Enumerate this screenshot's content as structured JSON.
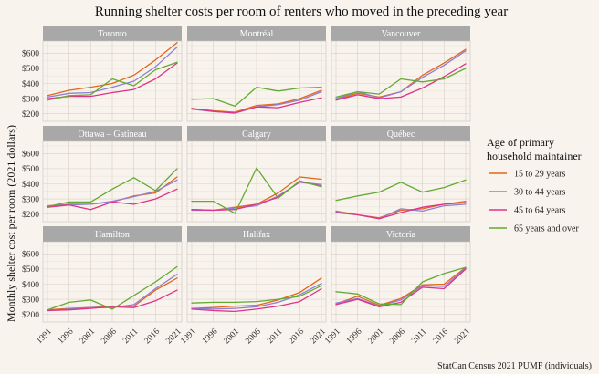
{
  "chart_data": {
    "type": "line",
    "title": "Running shelter costs per room of renters who moved in the preceding year",
    "ylabel": "Monthly shelter cost per room (2021 dollars)",
    "xlabel": "",
    "caption": "StatCan Census 2021 PUMF (individuals)",
    "legend": {
      "title_lines": [
        "Age of primary",
        "household maintainer"
      ],
      "position": "right"
    },
    "x": [
      1991,
      1996,
      2001,
      2006,
      2011,
      2016,
      2021
    ],
    "x_ticks": [
      "1991",
      "1996",
      "2001",
      "2006",
      "2011",
      "2016",
      "2021"
    ],
    "ylim": [
      150,
      680
    ],
    "y_ticks": [
      200,
      300,
      400,
      500,
      600
    ],
    "y_tick_labels": [
      "$200",
      "$300",
      "$400",
      "$500",
      "$600"
    ],
    "grid": true,
    "series_defs": [
      {
        "name": "15 to 29 years",
        "color": "#e4661a"
      },
      {
        "name": "30 to 44 years",
        "color": "#8e7fd4"
      },
      {
        "name": "45 to 64 years",
        "color": "#e0328a"
      },
      {
        "name": "65 years and over",
        "color": "#62aa32"
      }
    ],
    "panels": [
      {
        "title": "Toronto",
        "series": [
          [
            320,
            355,
            375,
            400,
            455,
            555,
            670
          ],
          [
            310,
            335,
            340,
            375,
            415,
            510,
            640
          ],
          [
            300,
            315,
            315,
            340,
            360,
            430,
            535
          ],
          [
            290,
            320,
            325,
            430,
            385,
            490,
            540
          ]
        ]
      },
      {
        "title": "Montréal",
        "series": [
          [
            235,
            220,
            210,
            255,
            265,
            300,
            355
          ],
          [
            230,
            215,
            205,
            245,
            260,
            290,
            345
          ],
          [
            235,
            215,
            205,
            245,
            240,
            275,
            305
          ],
          [
            295,
            300,
            250,
            375,
            350,
            370,
            375
          ]
        ]
      },
      {
        "title": "Vancouver",
        "series": [
          [
            295,
            335,
            310,
            345,
            455,
            535,
            625
          ],
          [
            300,
            345,
            305,
            345,
            440,
            520,
            615
          ],
          [
            290,
            325,
            300,
            310,
            370,
            445,
            530
          ],
          [
            310,
            345,
            330,
            430,
            410,
            430,
            500
          ]
        ]
      },
      {
        "title": "Ottawa – Gatineau",
        "series": [
          [
            255,
            265,
            265,
            280,
            320,
            340,
            445
          ],
          [
            255,
            260,
            265,
            285,
            315,
            350,
            425
          ],
          [
            245,
            260,
            230,
            280,
            265,
            300,
            365
          ],
          [
            250,
            280,
            280,
            365,
            440,
            355,
            500
          ]
        ]
      },
      {
        "title": "Calgary",
        "series": [
          [
            230,
            225,
            245,
            265,
            340,
            445,
            430
          ],
          [
            225,
            225,
            240,
            255,
            320,
            410,
            395
          ],
          [
            230,
            225,
            230,
            265,
            310,
            415,
            385
          ],
          [
            285,
            285,
            205,
            505,
            305,
            420,
            380
          ]
        ]
      },
      {
        "title": "Québec",
        "series": [
          [
            220,
            195,
            175,
            225,
            235,
            265,
            285
          ],
          [
            215,
            195,
            170,
            235,
            220,
            255,
            265
          ],
          [
            210,
            195,
            170,
            210,
            245,
            265,
            275
          ],
          [
            290,
            320,
            345,
            410,
            345,
            375,
            425
          ]
        ]
      },
      {
        "title": "Hamilton",
        "series": [
          [
            230,
            240,
            245,
            255,
            255,
            360,
            440
          ],
          [
            225,
            235,
            245,
            245,
            265,
            370,
            465
          ],
          [
            225,
            230,
            240,
            250,
            245,
            290,
            360
          ],
          [
            230,
            280,
            295,
            235,
            325,
            415,
            515
          ]
        ]
      },
      {
        "title": "Halifax",
        "series": [
          [
            240,
            245,
            255,
            260,
            295,
            345,
            440
          ],
          [
            240,
            235,
            240,
            250,
            280,
            330,
            405
          ],
          [
            235,
            225,
            220,
            235,
            255,
            285,
            370
          ],
          [
            275,
            280,
            280,
            285,
            300,
            320,
            390
          ]
        ]
      },
      {
        "title": "Victoria",
        "series": [
          [
            270,
            320,
            260,
            305,
            395,
            400,
            510
          ],
          [
            275,
            305,
            255,
            295,
            390,
            385,
            505
          ],
          [
            265,
            300,
            250,
            280,
            380,
            370,
            500
          ],
          [
            350,
            335,
            270,
            265,
            415,
            470,
            510
          ]
        ]
      }
    ]
  }
}
